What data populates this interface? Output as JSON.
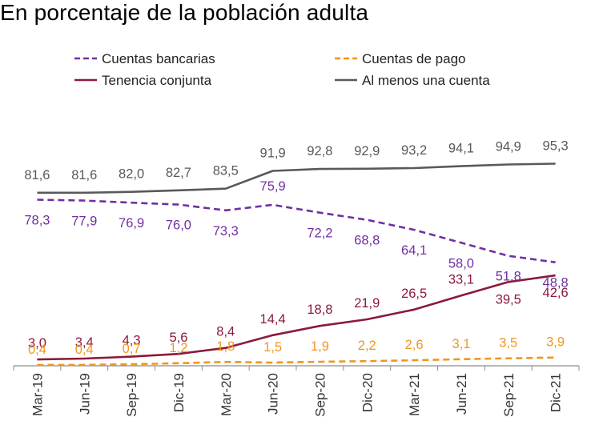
{
  "chart_data": {
    "type": "line",
    "title": "En porcentaje de la población adulta",
    "xlabel": "",
    "ylabel": "",
    "ylim": [
      0,
      100
    ],
    "grid": false,
    "legend_position": "top",
    "categories": [
      "Mar-19",
      "Jun-19",
      "Sep-19",
      "Dic-19",
      "Mar-20",
      "Jun-20",
      "Sep-20",
      "Dic-20",
      "Mar-21",
      "Jun-21",
      "Sep-21",
      "Dic-21"
    ],
    "series": [
      {
        "name": "Al menos una cuenta",
        "color": "#595959",
        "style": "solid",
        "values": [
          81.6,
          81.6,
          82.0,
          82.7,
          83.5,
          91.9,
          92.8,
          92.9,
          93.2,
          94.1,
          94.9,
          95.3
        ],
        "labels": [
          "81,6",
          "81,6",
          "82,0",
          "82,7",
          "83,5",
          "91,9",
          "92,8",
          "92,9",
          "93,2",
          "94,1",
          "94,9",
          "95,3"
        ]
      },
      {
        "name": "Cuentas bancarias",
        "color": "#7030a0",
        "style": "dashed",
        "values": [
          78.3,
          77.9,
          76.9,
          76.0,
          73.3,
          75.9,
          72.2,
          68.8,
          64.1,
          58.0,
          51.8,
          48.8
        ],
        "labels": [
          "78,3",
          "77,9",
          "76,9",
          "76,0",
          "73,3",
          "75,9",
          "72,2",
          "68,8",
          "64,1",
          "58,0",
          "51,8",
          "48,8"
        ]
      },
      {
        "name": "Tenencia conjunta",
        "color": "#8b1a3a",
        "style": "solid",
        "values": [
          3.0,
          3.4,
          4.3,
          5.6,
          8.4,
          14.4,
          18.8,
          21.9,
          26.5,
          33.1,
          39.5,
          42.6
        ],
        "labels": [
          "3,0",
          "3,4",
          "4,3",
          "5,6",
          "8,4",
          "14,4",
          "18,8",
          "21,9",
          "26,5",
          "33,1",
          "39,5",
          "42,6"
        ]
      },
      {
        "name": "Cuentas de pago",
        "color": "#f0961e",
        "style": "dashed",
        "values": [
          0.4,
          0.4,
          0.7,
          1.2,
          1.8,
          1.5,
          1.9,
          2.2,
          2.6,
          3.1,
          3.5,
          3.9
        ],
        "labels": [
          "0,4",
          "0,4",
          "0,7",
          "1,2",
          "1,8",
          "1,5",
          "1,9",
          "2,2",
          "2,6",
          "3,1",
          "3,5",
          "3,9"
        ]
      }
    ],
    "legend_order": [
      "Cuentas bancarias",
      "Cuentas de pago",
      "Tenencia conjunta",
      "Al menos una cuenta"
    ]
  }
}
